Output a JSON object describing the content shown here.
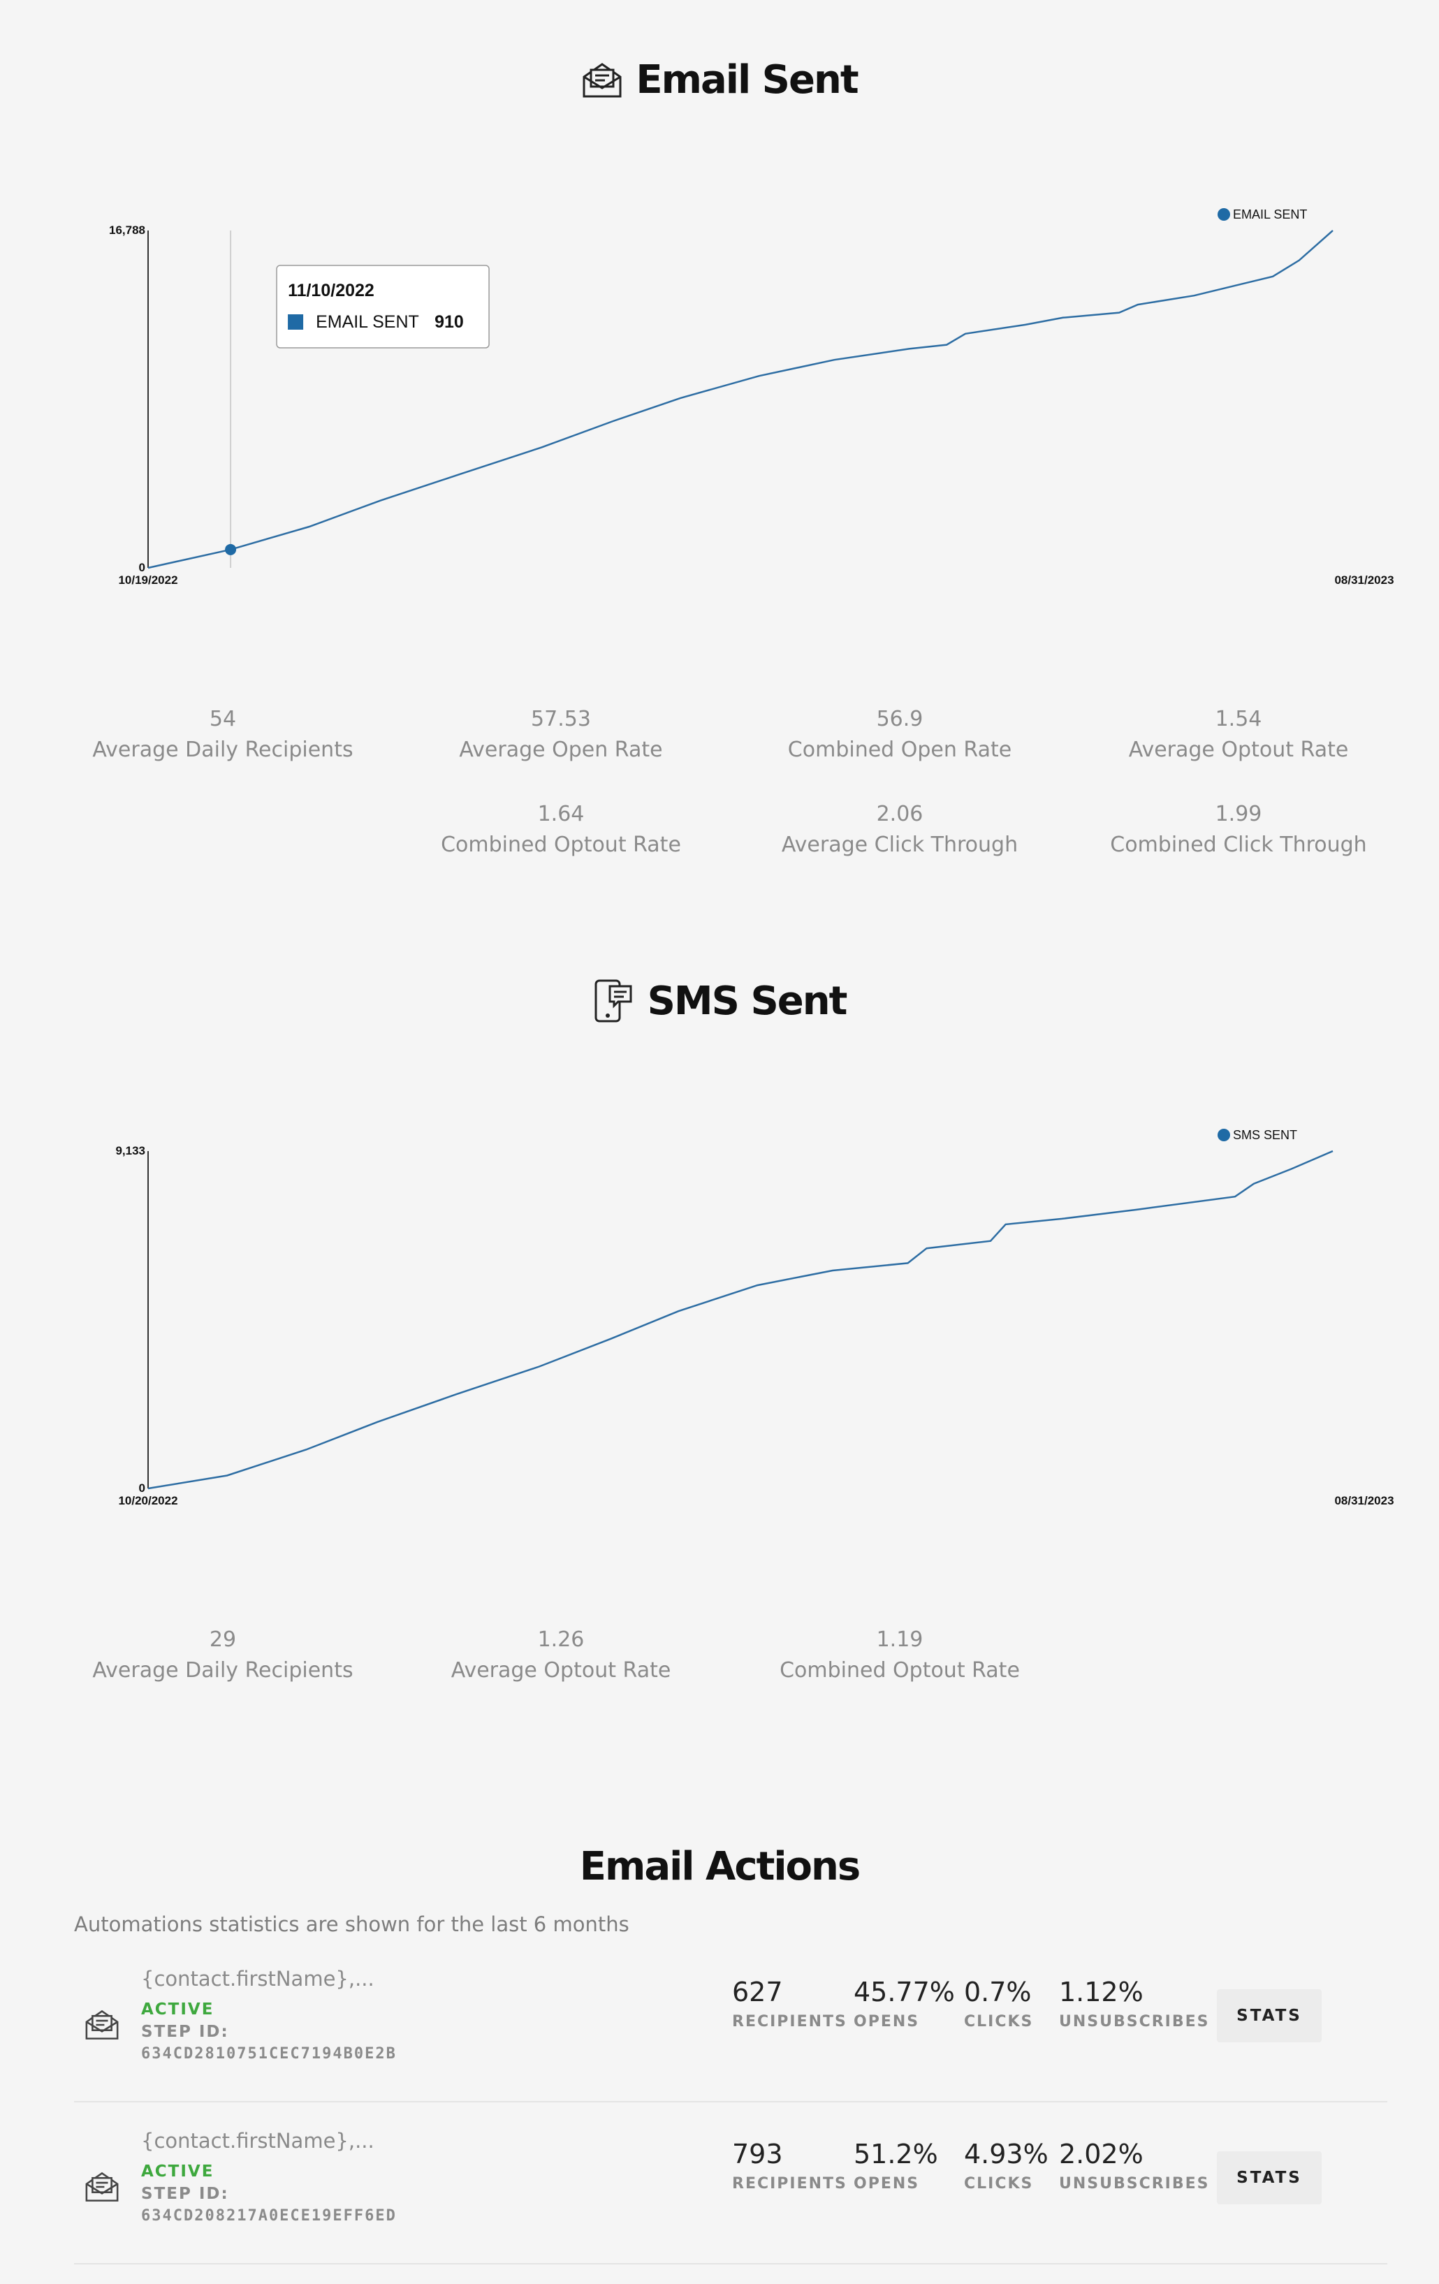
{
  "email_section": {
    "title": "Email Sent",
    "icon": "envelope-open-icon",
    "stats": [
      {
        "value": "54",
        "label": "Average Daily Recipients"
      },
      {
        "value": "57.53",
        "label": "Average Open Rate"
      },
      {
        "value": "56.9",
        "label": "Combined Open Rate"
      },
      {
        "value": "1.54",
        "label": "Average Optout Rate"
      },
      {
        "value": "1.64",
        "label": "Combined Optout Rate"
      },
      {
        "value": "2.06",
        "label": "Average Click Through"
      },
      {
        "value": "1.99",
        "label": "Combined Click Through"
      }
    ]
  },
  "sms_section": {
    "title": "SMS Sent",
    "icon": "phone-message-icon",
    "stats": [
      {
        "value": "29",
        "label": "Average Daily Recipients"
      },
      {
        "value": "1.26",
        "label": "Average Optout Rate"
      },
      {
        "value": "1.19",
        "label": "Combined Optout Rate"
      }
    ]
  },
  "email_actions": {
    "title": "Email Actions",
    "subtitle": "Automations statistics are shown for the last 6 months",
    "step_id_label": "STEP ID:",
    "stats_button_label": "STATS",
    "metric_labels": {
      "recipients": "RECIPIENTS",
      "opens": "OPENS",
      "clicks": "CLICKS",
      "unsubscribes": "UNSUBSCRIBES"
    },
    "rows": [
      {
        "subject": "{contact.firstName},...",
        "status": "ACTIVE",
        "step_id": "634CD2810751CEC7194B0E2B",
        "recipients": "627",
        "opens": "45.77%",
        "clicks": "0.7%",
        "unsubscribes": "1.12%"
      },
      {
        "subject": "{contact.firstName},...",
        "status": "ACTIVE",
        "step_id": "634CD208217A0ECE19EFF6ED",
        "recipients": "793",
        "opens": "51.2%",
        "clicks": "4.93%",
        "unsubscribes": "2.02%"
      }
    ]
  },
  "colors": {
    "line": "#2d6da3",
    "marker": "#1f6aa5",
    "active": "#3ea83e"
  },
  "chart_data": [
    {
      "type": "line",
      "series": [
        {
          "name": "EMAIL SENT",
          "points": [
            [
              "2022-10-19",
              0
            ],
            [
              "2022-11-10",
              910
            ],
            [
              "2022-12-01",
              2050
            ],
            [
              "2022-12-20",
              3350
            ],
            [
              "2023-01-10",
              4650
            ],
            [
              "2023-02-01",
              6000
            ],
            [
              "2023-02-20",
              7300
            ],
            [
              "2023-03-10",
              8450
            ],
            [
              "2023-03-31",
              9550
            ],
            [
              "2023-04-20",
              10350
            ],
            [
              "2023-05-10",
              10900
            ],
            [
              "2023-05-20",
              11100
            ],
            [
              "2023-05-25",
              11650
            ],
            [
              "2023-06-10",
              12100
            ],
            [
              "2023-06-20",
              12450
            ],
            [
              "2023-07-05",
              12700
            ],
            [
              "2023-07-10",
              13100
            ],
            [
              "2023-07-25",
              13550
            ],
            [
              "2023-08-05",
              14050
            ],
            [
              "2023-08-15",
              14500
            ],
            [
              "2023-08-22",
              15300
            ],
            [
              "2023-08-31",
              16788
            ]
          ]
        }
      ],
      "x_ticks": [
        "10/19/2022",
        "08/31/2023"
      ],
      "y_ticks": [
        "0",
        "16,788"
      ],
      "ylim": [
        0,
        16788
      ],
      "legend": "top-right",
      "tooltip": {
        "date": "11/10/2022",
        "series": "EMAIL SENT",
        "value": "910"
      }
    },
    {
      "type": "line",
      "series": [
        {
          "name": "SMS SENT",
          "points": [
            [
              "2022-10-20",
              0
            ],
            [
              "2022-11-10",
              350
            ],
            [
              "2022-12-01",
              1050
            ],
            [
              "2022-12-20",
              1800
            ],
            [
              "2023-01-10",
              2550
            ],
            [
              "2023-02-01",
              3300
            ],
            [
              "2023-02-20",
              4050
            ],
            [
              "2023-03-10",
              4800
            ],
            [
              "2023-03-31",
              5500
            ],
            [
              "2023-04-20",
              5900
            ],
            [
              "2023-05-10",
              6100
            ],
            [
              "2023-05-15",
              6500
            ],
            [
              "2023-06-01",
              6700
            ],
            [
              "2023-06-05",
              7150
            ],
            [
              "2023-06-20",
              7300
            ],
            [
              "2023-07-10",
              7550
            ],
            [
              "2023-08-05",
              7900
            ],
            [
              "2023-08-10",
              8250
            ],
            [
              "2023-08-20",
              8650
            ],
            [
              "2023-08-31",
              9133
            ]
          ]
        }
      ],
      "x_ticks": [
        "10/20/2022",
        "08/31/2023"
      ],
      "y_ticks": [
        "0",
        "9,133"
      ],
      "ylim": [
        0,
        9133
      ],
      "legend": "top-right"
    }
  ]
}
